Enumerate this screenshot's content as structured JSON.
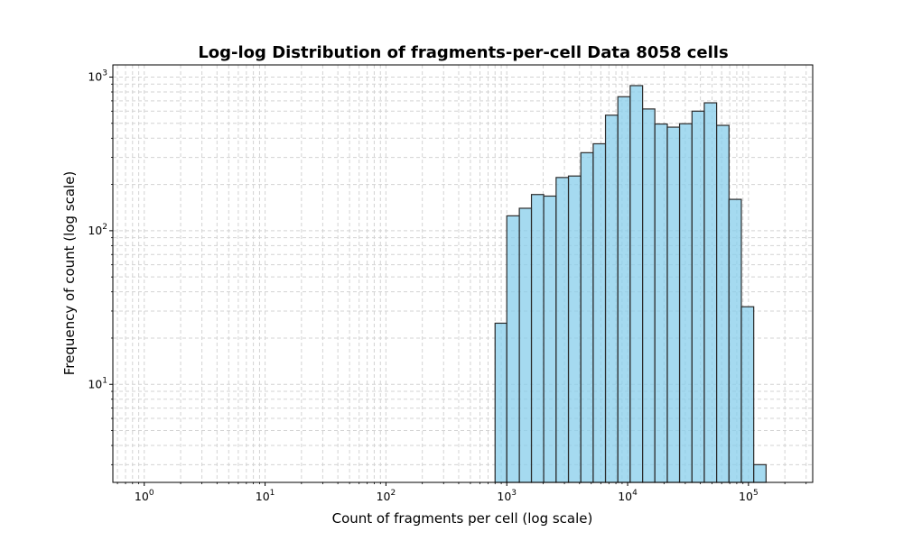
{
  "chart_data": {
    "type": "bar",
    "title": "Log-log Distribution of fragments-per-cell Data 8058 cells",
    "xlabel": "Count of fragments per cell (log scale)",
    "ylabel": "Frequency of count (log scale)",
    "xscale": "log",
    "yscale": "log",
    "xlim": [
      0.55,
      340000
    ],
    "ylim": [
      2.3,
      1200
    ],
    "grid": true,
    "colors": {
      "bar_fill": "#87ceeb",
      "bar_edge": "#2a2a2a",
      "grid": "#d3d3d3"
    },
    "x_ticks": [
      {
        "base": "10",
        "exp": "0",
        "value": 1
      },
      {
        "base": "10",
        "exp": "1",
        "value": 10
      },
      {
        "base": "10",
        "exp": "2",
        "value": 100
      },
      {
        "base": "10",
        "exp": "3",
        "value": 1000
      },
      {
        "base": "10",
        "exp": "4",
        "value": 10000
      },
      {
        "base": "10",
        "exp": "5",
        "value": 100000
      }
    ],
    "y_ticks": [
      {
        "base": "10",
        "exp": "1",
        "value": 10
      },
      {
        "base": "10",
        "exp": "2",
        "value": 100
      },
      {
        "base": "10",
        "exp": "3",
        "value": 1000
      }
    ],
    "bins": [
      {
        "x0": 800,
        "x1": 1000,
        "count": 25
      },
      {
        "x0": 1000,
        "x1": 1270,
        "count": 125
      },
      {
        "x0": 1270,
        "x1": 1600,
        "count": 140
      },
      {
        "x0": 1600,
        "x1": 2020,
        "count": 172
      },
      {
        "x0": 2020,
        "x1": 2560,
        "count": 168
      },
      {
        "x0": 2560,
        "x1": 3240,
        "count": 222
      },
      {
        "x0": 3240,
        "x1": 4100,
        "count": 227
      },
      {
        "x0": 4100,
        "x1": 5190,
        "count": 322
      },
      {
        "x0": 5190,
        "x1": 6560,
        "count": 368
      },
      {
        "x0": 6560,
        "x1": 8300,
        "count": 565
      },
      {
        "x0": 8300,
        "x1": 10500,
        "count": 745
      },
      {
        "x0": 10500,
        "x1": 13300,
        "count": 880
      },
      {
        "x0": 13300,
        "x1": 16800,
        "count": 620
      },
      {
        "x0": 16800,
        "x1": 21300,
        "count": 495
      },
      {
        "x0": 21300,
        "x1": 26900,
        "count": 472
      },
      {
        "x0": 26900,
        "x1": 34100,
        "count": 497
      },
      {
        "x0": 34100,
        "x1": 43100,
        "count": 600
      },
      {
        "x0": 43100,
        "x1": 54500,
        "count": 680
      },
      {
        "x0": 54500,
        "x1": 69000,
        "count": 485
      },
      {
        "x0": 69000,
        "x1": 87300,
        "count": 160
      },
      {
        "x0": 87300,
        "x1": 110500,
        "count": 32
      },
      {
        "x0": 110500,
        "x1": 139800,
        "count": 3
      }
    ]
  }
}
